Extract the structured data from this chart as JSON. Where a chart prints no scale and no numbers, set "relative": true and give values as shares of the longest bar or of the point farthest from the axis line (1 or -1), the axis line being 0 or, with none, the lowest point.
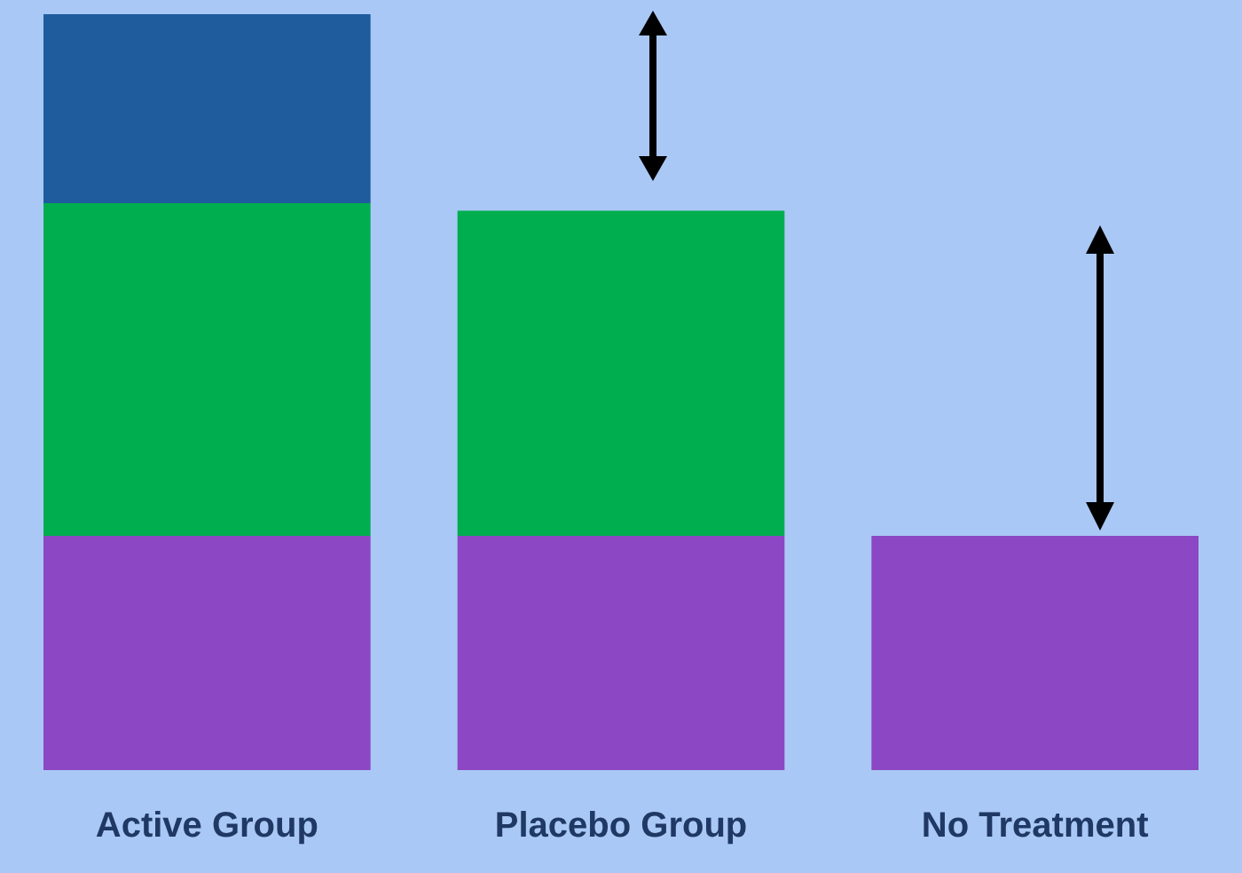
{
  "chart_data": {
    "type": "bar",
    "relative": true,
    "stacked": true,
    "categories": [
      "Active Group",
      "Placebo Group",
      "No Treatment"
    ],
    "series": [
      {
        "color": "#8b47c4",
        "values": [
          0.31,
          0.31,
          0.31
        ]
      },
      {
        "color": "#00ae4f",
        "values": [
          0.44,
          0.43,
          null
        ]
      },
      {
        "color": "#1f5c9e",
        "values": [
          0.25,
          null,
          null
        ]
      }
    ]
  }
}
